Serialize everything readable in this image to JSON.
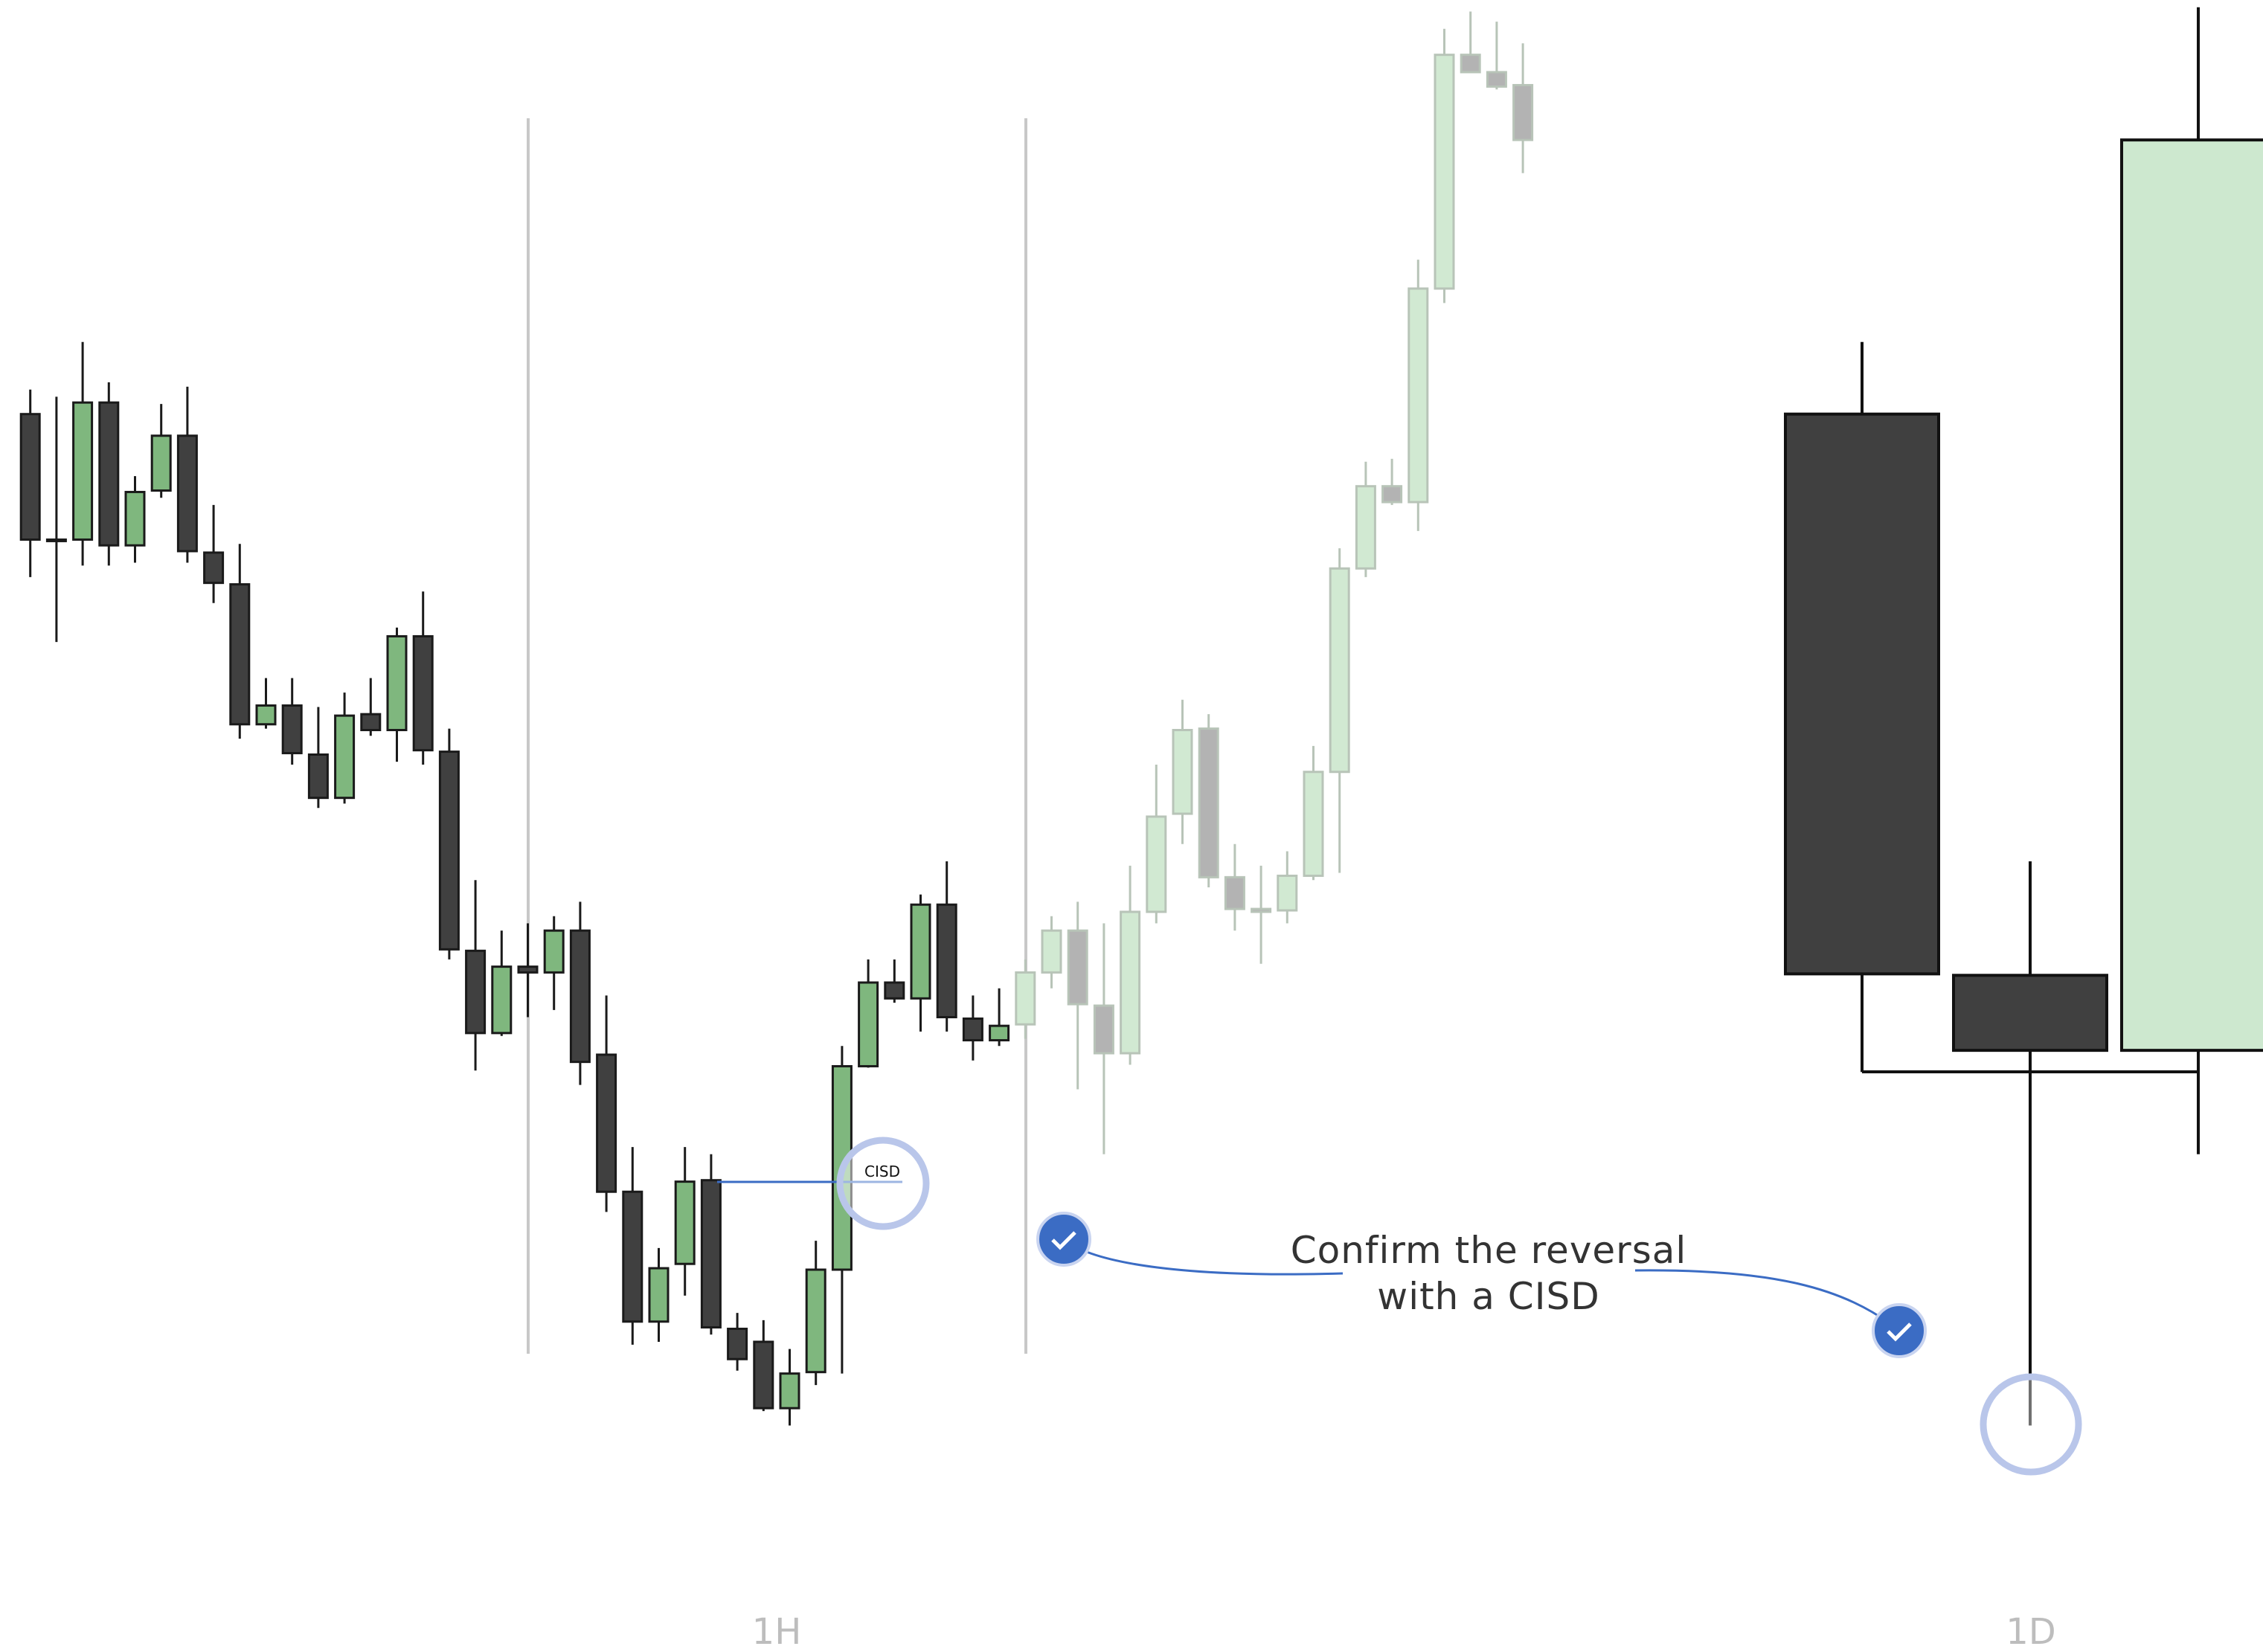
{
  "chart_data": [
    {
      "type": "candlestick",
      "label": "1H",
      "ylim": [
        0,
        1145
      ],
      "annotations": {
        "cisd": "CISD",
        "callout": [
          "Confirm the reversal",
          "with a CISD"
        ]
      },
      "series": [
        {
          "up_color": "#7fb77e",
          "down_color": "#404040",
          "edge_color": "#1a1a1a",
          "ohlc": [
            [
              858,
              875,
              745,
              771
            ],
            [
              771,
              870,
              700,
              770
            ],
            [
              771,
              908,
              753,
              866
            ],
            [
              866,
              880,
              753,
              767
            ],
            [
              767,
              815,
              755,
              804
            ],
            [
              805,
              865,
              800,
              843
            ],
            [
              843,
              877,
              755,
              763
            ],
            [
              762,
              795,
              727,
              741
            ],
            [
              740,
              768,
              633,
              643
            ],
            [
              643,
              675,
              640,
              656
            ],
            [
              656,
              675,
              615,
              623
            ],
            [
              622,
              655,
              585,
              592
            ],
            [
              592,
              665,
              588,
              649
            ],
            [
              650,
              675,
              635,
              639
            ],
            [
              639,
              710,
              617,
              704
            ],
            [
              704,
              735,
              615,
              625
            ],
            [
              624,
              640,
              480,
              487
            ],
            [
              486,
              535,
              403,
              429
            ],
            [
              429,
              500,
              427,
              475
            ],
            [
              475,
              505,
              440,
              471
            ],
            [
              471,
              510,
              445,
              500
            ],
            [
              500,
              520,
              393,
              409
            ],
            [
              414,
              455,
              305,
              319
            ],
            [
              319,
              350,
              213,
              229
            ],
            [
              229,
              280,
              215,
              266
            ],
            [
              269,
              350,
              247,
              326
            ],
            [
              327,
              345,
              220,
              225
            ],
            [
              224,
              235,
              195,
              203
            ],
            [
              215,
              230,
              167,
              169
            ],
            [
              169,
              210,
              157,
              193
            ],
            [
              194,
              285,
              185,
              265
            ],
            [
              265,
              420,
              193,
              406
            ],
            [
              406,
              480,
              405,
              464
            ],
            [
              464,
              480,
              450,
              453
            ],
            [
              453,
              525,
              430,
              518
            ],
            [
              518,
              548,
              430,
              440
            ],
            [
              439,
              455,
              410,
              424
            ],
            [
              424,
              460,
              420,
              434
            ]
          ]
        },
        {
          "up_color": "#d1e9d2",
          "down_color": "#b3b3b3",
          "edge_color": "#b8c4b8",
          "ohlc": [
            [
              435,
              480,
              425,
              471
            ],
            [
              471,
              510,
              460,
              500
            ],
            [
              500,
              520,
              390,
              449
            ],
            [
              448,
              505,
              345,
              415
            ],
            [
              415,
              545,
              407,
              513
            ],
            [
              513,
              615,
              505,
              579
            ],
            [
              581,
              660,
              560,
              639
            ],
            [
              640,
              650,
              530,
              537
            ],
            [
              537,
              560,
              500,
              515
            ],
            [
              515,
              545,
              477,
              513
            ],
            [
              514,
              555,
              505,
              538
            ],
            [
              538,
              628,
              535,
              610
            ],
            [
              610,
              765,
              540,
              751
            ],
            [
              751,
              825,
              745,
              808
            ],
            [
              808,
              827,
              795,
              797
            ],
            [
              797,
              965,
              777,
              945
            ],
            [
              945,
              1125,
              935,
              1107
            ],
            [
              1107,
              1137,
              1095,
              1095
            ],
            [
              1095,
              1130,
              1083,
              1085
            ],
            [
              1086,
              1115,
              1025,
              1048
            ]
          ]
        }
      ]
    },
    {
      "type": "candlestick",
      "label": "1D",
      "ylim": [
        0,
        1145
      ],
      "series": [
        {
          "up_color": "#cde8cf",
          "down_color": "#404040",
          "edge_color": "#111111",
          "ohlc": [
            [
              858,
              908,
              402,
              470
            ],
            [
              469,
              548,
              157,
              417
            ],
            [
              417,
              1140,
              345,
              1048
            ]
          ]
        }
      ]
    }
  ]
}
